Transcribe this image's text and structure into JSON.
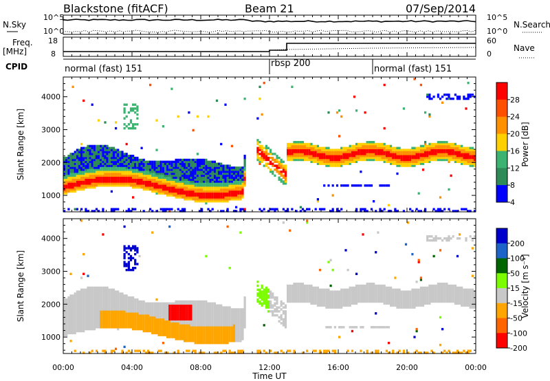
{
  "header": {
    "station": "Blackstone (fitACF)",
    "beam": "Beam 21",
    "date": "07/Sep/2014"
  },
  "strip": {
    "nsky_label": "N.Sky",
    "nsky_ticks": [
      "10^5",
      "10^0"
    ],
    "nsearch_label": "N.Search",
    "freq_label_1": "Freq.",
    "freq_label_2": "[MHz]",
    "freq_ticks": [
      "18",
      "8"
    ],
    "nave_label": "Nave",
    "nave_ticks": [
      "60",
      "0"
    ],
    "cpid_label": "CPID",
    "cpid_segments": [
      {
        "label": "normal (fast) 151",
        "start_h": 0
      },
      {
        "label": "rbsp 200",
        "start_h": 12
      },
      {
        "label": "normal (fast) 151",
        "start_h": 18
      }
    ]
  },
  "chart_data": [
    {
      "type": "heatmap",
      "ylabel": "Slant Range [km]",
      "yticks": [
        1000,
        2000,
        3000,
        4000
      ],
      "ylim": [
        500,
        4600
      ],
      "colorbar": {
        "label": "Power [dB]",
        "ticks": [
          "28",
          "24",
          "20",
          "16",
          "12",
          "8",
          "4"
        ],
        "colors": [
          "#ff0000",
          "#ff5000",
          "#ff9000",
          "#ffd000",
          "#3cb371",
          "#2e8b57",
          "#0000ff"
        ]
      }
    },
    {
      "type": "heatmap",
      "ylabel": "Slant Range [km]",
      "yticks": [
        1000,
        2000,
        3000,
        4000
      ],
      "ylim": [
        500,
        4600
      ],
      "colorbar": {
        "label": "Velocity [m s⁻¹]",
        "ticks": [
          "200",
          "100",
          "50",
          "15",
          "-15",
          "-50",
          "-100",
          "-200"
        ],
        "colors": [
          "#0000cd",
          "#1e64c8",
          "#006400",
          "#7cfc00",
          "#c8c8c8",
          "#ffa500",
          "#ff6400",
          "#ff0000"
        ]
      }
    }
  ],
  "time_axis": {
    "xlabel": "Time UT",
    "ticks": [
      "00:00",
      "04:00",
      "08:00",
      "12:00",
      "16:00",
      "20:00",
      "00:00"
    ]
  }
}
